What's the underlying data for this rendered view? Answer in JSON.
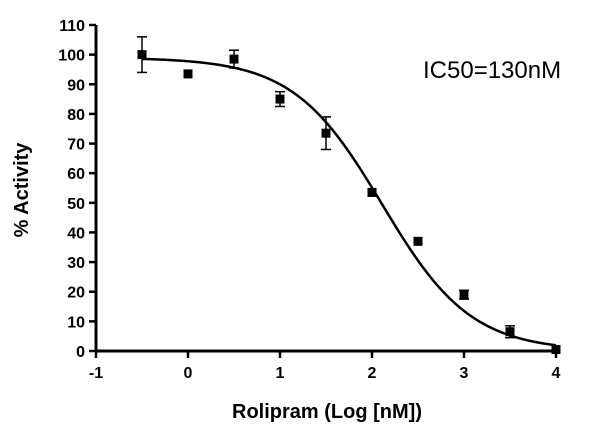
{
  "chart_data": {
    "type": "scatter",
    "title": "",
    "xlabel": "Rolipram (Log [nM])",
    "ylabel": "% Activity",
    "xlim": [
      -1,
      4
    ],
    "ylim": [
      0,
      110
    ],
    "x_ticks": [
      -1,
      0,
      1,
      2,
      3,
      4
    ],
    "y_ticks": [
      0,
      10,
      20,
      30,
      40,
      50,
      60,
      70,
      80,
      90,
      100,
      110
    ],
    "grid": false,
    "legend": "none",
    "annotation": "IC50=130nM",
    "series": [
      {
        "x": [
          -0.5,
          0,
          0.5,
          1,
          1.5,
          2,
          2.5,
          3,
          3.5,
          4
        ],
        "y": [
          100,
          93.5,
          98.5,
          85,
          73.5,
          53.5,
          37,
          19,
          6.5,
          0.5
        ],
        "error": [
          6,
          0,
          3,
          2.5,
          5.5,
          0,
          0,
          1.5,
          2,
          0
        ]
      }
    ],
    "fit": {
      "type": "sigmoidal dose-response",
      "top": 99,
      "bottom": 0,
      "log_ic50": 2.11,
      "hill_slope": -0.9
    },
    "colors": {
      "marker": "#000000",
      "line": "#000000",
      "axis": "#000000"
    }
  }
}
